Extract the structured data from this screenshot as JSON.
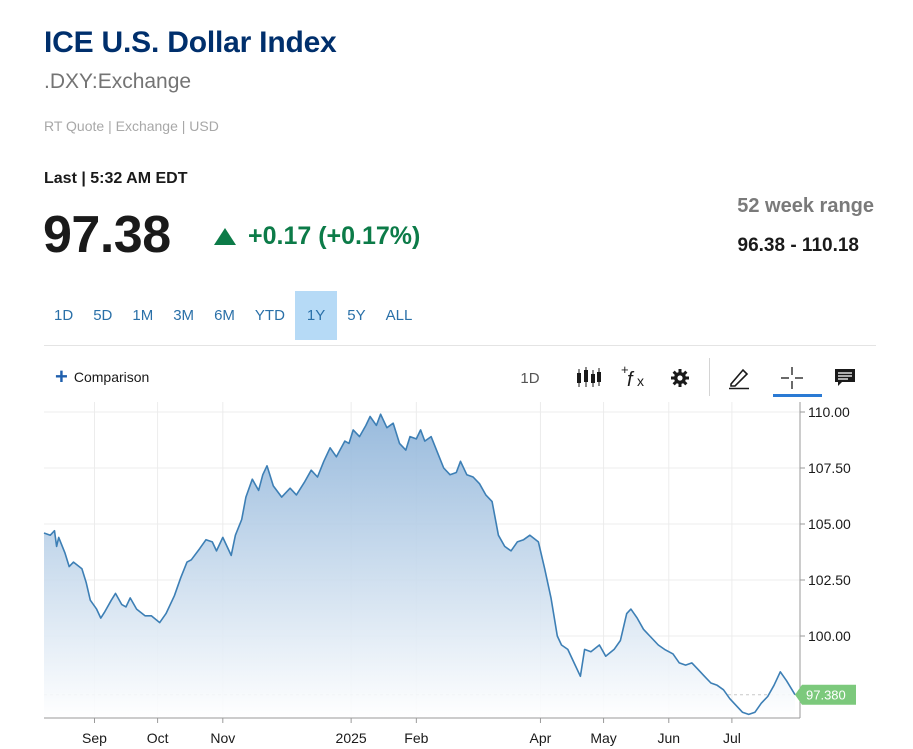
{
  "header": {
    "title": "ICE U.S. Dollar Index",
    "symbol": ".DXY:Exchange",
    "quote_meta": "RT Quote | Exchange | USD",
    "last_label": "Last | 5:32 AM EDT",
    "price": "97.38",
    "change": "+0.17 (+0.17%)",
    "range_label": "52 week range",
    "range_value": "96.38 - 110.18"
  },
  "colors": {
    "title": "#002f6c",
    "positive": "#0c7b48",
    "active_period": "#b6daf6",
    "line": "#3d7fb5",
    "price_tag": "#7cc97c"
  },
  "periods": [
    "1D",
    "5D",
    "1M",
    "3M",
    "6M",
    "YTD",
    "1Y",
    "5Y",
    "ALL"
  ],
  "active_period": "1Y",
  "toolbar": {
    "comparison_label": "Comparison",
    "interval_label": "1D",
    "icons": [
      "candlestick-icon",
      "function-icon",
      "gear-icon",
      "pencil-icon",
      "crosshair-icon",
      "news-icon"
    ]
  },
  "chart_data": {
    "type": "area",
    "xlabel": "",
    "ylabel": "",
    "ylim": [
      96.38,
      110.18
    ],
    "y_ticks": [
      "110.00",
      "107.50",
      "105.00",
      "102.50",
      "100.00"
    ],
    "y_tick_values": [
      110,
      107.5,
      105,
      102.5,
      100
    ],
    "x_ticks": [
      "Sep",
      "Oct",
      "Nov",
      "2025",
      "Feb",
      "Apr",
      "May",
      "Jun",
      "Jul"
    ],
    "x_tick_dates": [
      "2024-09-01",
      "2024-10-01",
      "2024-11-01",
      "2025-01-01",
      "2025-02-01",
      "2025-04-01",
      "2025-05-01",
      "2025-06-01",
      "2025-07-01"
    ],
    "last_value_label": "97.380",
    "last_value": 97.38,
    "grid": true,
    "series": [
      {
        "x": [
          "2024-08-08",
          "2024-08-11",
          "2024-08-13",
          "2024-08-14",
          "2024-08-15",
          "2024-08-18",
          "2024-08-20",
          "2024-08-22",
          "2024-08-26",
          "2024-08-28",
          "2024-08-30",
          "2024-09-02",
          "2024-09-04",
          "2024-09-06",
          "2024-09-09",
          "2024-09-11",
          "2024-09-14",
          "2024-09-16",
          "2024-09-18",
          "2024-09-21",
          "2024-09-25",
          "2024-09-28",
          "2024-10-02",
          "2024-10-05",
          "2024-10-09",
          "2024-10-12",
          "2024-10-15",
          "2024-10-17",
          "2024-10-21",
          "2024-10-24",
          "2024-10-27",
          "2024-10-29",
          "2024-11-01",
          "2024-11-03",
          "2024-11-05",
          "2024-11-07",
          "2024-11-10",
          "2024-11-12",
          "2024-11-15",
          "2024-11-18",
          "2024-11-20",
          "2024-11-22",
          "2024-11-25",
          "2024-11-29",
          "2024-12-03",
          "2024-12-06",
          "2024-12-10",
          "2024-12-13",
          "2024-12-16",
          "2024-12-19",
          "2024-12-22",
          "2024-12-25",
          "2024-12-29",
          "2024-12-31",
          "2025-01-02",
          "2025-01-05",
          "2025-01-08",
          "2025-01-10",
          "2025-01-13",
          "2025-01-15",
          "2025-01-18",
          "2025-01-21",
          "2025-01-24",
          "2025-01-27",
          "2025-01-29",
          "2025-02-01",
          "2025-02-03",
          "2025-02-05",
          "2025-02-08",
          "2025-02-11",
          "2025-02-14",
          "2025-02-17",
          "2025-02-20",
          "2025-02-22",
          "2025-02-25",
          "2025-02-28",
          "2025-03-03",
          "2025-03-06",
          "2025-03-09",
          "2025-03-12",
          "2025-03-15",
          "2025-03-18",
          "2025-03-21",
          "2025-03-24",
          "2025-03-27",
          "2025-03-31",
          "2025-04-03",
          "2025-04-06",
          "2025-04-09",
          "2025-04-11",
          "2025-04-14",
          "2025-04-17",
          "2025-04-20",
          "2025-04-22",
          "2025-04-25",
          "2025-04-29",
          "2025-05-02",
          "2025-05-06",
          "2025-05-09",
          "2025-05-12",
          "2025-05-14",
          "2025-05-17",
          "2025-05-20",
          "2025-05-23",
          "2025-05-27",
          "2025-05-30",
          "2025-06-03",
          "2025-06-06",
          "2025-06-09",
          "2025-06-12",
          "2025-06-15",
          "2025-06-18",
          "2025-06-21",
          "2025-06-24",
          "2025-06-27",
          "2025-06-30",
          "2025-07-03",
          "2025-07-06",
          "2025-07-09",
          "2025-07-12",
          "2025-07-15",
          "2025-07-18",
          "2025-07-21",
          "2025-07-24",
          "2025-07-27",
          "2025-07-31"
        ],
        "y": [
          104.6,
          104.5,
          104.7,
          104.0,
          104.4,
          103.7,
          103.1,
          103.3,
          103.0,
          102.4,
          101.6,
          101.2,
          100.8,
          101.1,
          101.6,
          101.9,
          101.4,
          101.3,
          101.7,
          101.2,
          100.9,
          100.9,
          100.6,
          101.0,
          101.8,
          102.6,
          103.3,
          103.4,
          103.9,
          104.3,
          104.2,
          103.8,
          104.4,
          104.0,
          103.6,
          104.5,
          105.2,
          106.2,
          107.0,
          106.5,
          107.2,
          107.6,
          106.7,
          106.2,
          106.6,
          106.3,
          106.9,
          107.4,
          107.1,
          107.8,
          108.4,
          108.0,
          108.7,
          108.6,
          109.2,
          108.9,
          109.4,
          109.8,
          109.4,
          109.9,
          109.3,
          109.5,
          108.6,
          108.3,
          108.9,
          108.8,
          109.2,
          108.7,
          108.9,
          108.2,
          107.5,
          107.2,
          107.3,
          107.8,
          107.2,
          107.1,
          106.8,
          106.3,
          106.0,
          104.5,
          104.0,
          103.8,
          104.2,
          104.3,
          104.5,
          104.2,
          103.0,
          101.7,
          100.0,
          99.6,
          99.4,
          98.8,
          98.2,
          99.4,
          99.3,
          99.6,
          99.1,
          99.4,
          99.8,
          101.0,
          101.2,
          100.8,
          100.3,
          100.0,
          99.6,
          99.4,
          99.2,
          98.8,
          98.7,
          98.8,
          98.5,
          98.2,
          97.9,
          97.8,
          97.6,
          97.2,
          96.9,
          96.6,
          96.5,
          96.6,
          97.0,
          97.3,
          97.8,
          98.4,
          98.0,
          97.38
        ]
      }
    ]
  }
}
